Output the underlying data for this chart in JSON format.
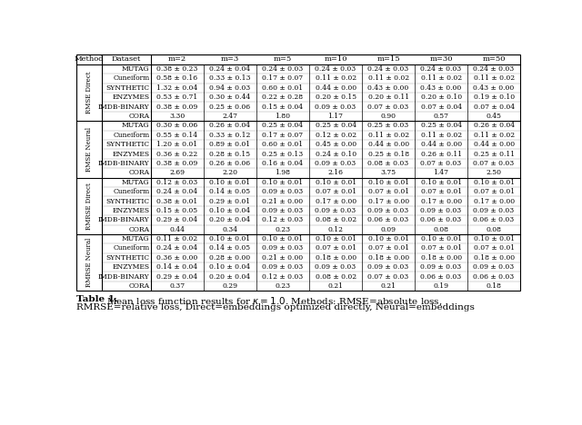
{
  "header": [
    "Method",
    "Dataset",
    "m=2",
    "m=3",
    "m=5",
    "m=10",
    "m=15",
    "m=30",
    "m=50"
  ],
  "sections": [
    {
      "method": "RMSE Direct",
      "rows": [
        [
          "MUTAG",
          "0.38 ± 0.23",
          "0.24 ± 0.04",
          "0.24 ± 0.03",
          "0.24 ± 0.03",
          "0.24 ± 0.03",
          "0.24 ± 0.03",
          "0.24 ± 0.03"
        ],
        [
          "Cuneiform",
          "0.58 ± 0.16",
          "0.33 ± 0.13",
          "0.17 ± 0.07",
          "0.11 ± 0.02",
          "0.11 ± 0.02",
          "0.11 ± 0.02",
          "0.11 ± 0.02"
        ],
        [
          "SYNTHETIC",
          "1.32 ± 0.04",
          "0.94 ± 0.03",
          "0.60 ± 0.01",
          "0.44 ± 0.00",
          "0.43 ± 0.00",
          "0.43 ± 0.00",
          "0.43 ± 0.00"
        ],
        [
          "ENZYMES",
          "0.53 ± 0.71",
          "0.30 ± 0.44",
          "0.22 ± 0.28",
          "0.20 ± 0.15",
          "0.20 ± 0.11",
          "0.20 ± 0.10",
          "0.19 ± 0.10"
        ],
        [
          "IMDB-BINARY",
          "0.38 ± 0.09",
          "0.25 ± 0.06",
          "0.15 ± 0.04",
          "0.09 ± 0.03",
          "0.07 ± 0.03",
          "0.07 ± 0.04",
          "0.07 ± 0.04"
        ],
        [
          "CORA",
          "3.30",
          "2.47",
          "1.80",
          "1.17",
          "0.90",
          "0.57",
          "0.45"
        ]
      ]
    },
    {
      "method": "RMSE Neural",
      "rows": [
        [
          "MUTAG",
          "0.30 ± 0.06",
          "0.26 ± 0.04",
          "0.25 ± 0.04",
          "0.25 ± 0.04",
          "0.25 ± 0.03",
          "0.25 ± 0.04",
          "0.26 ± 0.04"
        ],
        [
          "Cuneiform",
          "0.55 ± 0.14",
          "0.33 ± 0.12",
          "0.17 ± 0.07",
          "0.12 ± 0.02",
          "0.11 ± 0.02",
          "0.11 ± 0.02",
          "0.11 ± 0.02"
        ],
        [
          "SYNTHETIC",
          "1.20 ± 0.01",
          "0.89 ± 0.01",
          "0.60 ± 0.01",
          "0.45 ± 0.00",
          "0.44 ± 0.00",
          "0.44 ± 0.00",
          "0.44 ± 0.00"
        ],
        [
          "ENZYMES",
          "0.36 ± 0.22",
          "0.28 ± 0.15",
          "0.25 ± 0.13",
          "0.24 ± 0.10",
          "0.25 ± 0.18",
          "0.26 ± 0.11",
          "0.25 ± 0.11"
        ],
        [
          "IMDB-BINARY",
          "0.38 ± 0.09",
          "0.26 ± 0.06",
          "0.16 ± 0.04",
          "0.09 ± 0.03",
          "0.08 ± 0.03",
          "0.07 ± 0.03",
          "0.07 ± 0.03"
        ],
        [
          "CORA",
          "2.69",
          "2.20",
          "1.98",
          "2.16",
          "3.75",
          "1.47",
          "2.50"
        ]
      ]
    },
    {
      "method": "RMRSE Direct",
      "rows": [
        [
          "MUTAG",
          "0.12 ± 0.03",
          "0.10 ± 0.01",
          "0.10 ± 0.01",
          "0.10 ± 0.01",
          "0.10 ± 0.01",
          "0.10 ± 0.01",
          "0.10 ± 0.01"
        ],
        [
          "Cuneiform",
          "0.24 ± 0.04",
          "0.14 ± 0.05",
          "0.09 ± 0.03",
          "0.07 ± 0.01",
          "0.07 ± 0.01",
          "0.07 ± 0.01",
          "0.07 ± 0.01"
        ],
        [
          "SYNTHETIC",
          "0.38 ± 0.01",
          "0.29 ± 0.01",
          "0.21 ± 0.00",
          "0.17 ± 0.00",
          "0.17 ± 0.00",
          "0.17 ± 0.00",
          "0.17 ± 0.00"
        ],
        [
          "ENZYMES",
          "0.15 ± 0.05",
          "0.10 ± 0.04",
          "0.09 ± 0.03",
          "0.09 ± 0.03",
          "0.09 ± 0.03",
          "0.09 ± 0.03",
          "0.09 ± 0.03"
        ],
        [
          "IMDB-BINARY",
          "0.29 ± 0.04",
          "0.20 ± 0.04",
          "0.12 ± 0.03",
          "0.08 ± 0.02",
          "0.06 ± 0.03",
          "0.06 ± 0.03",
          "0.06 ± 0.03"
        ],
        [
          "CORA",
          "0.44",
          "0.34",
          "0.23",
          "0.12",
          "0.09",
          "0.08",
          "0.08"
        ]
      ]
    },
    {
      "method": "RMRSE Neural",
      "rows": [
        [
          "MUTAG",
          "0.11 ± 0.02",
          "0.10 ± 0.01",
          "0.10 ± 0.01",
          "0.10 ± 0.01",
          "0.10 ± 0.01",
          "0.10 ± 0.01",
          "0.10 ± 0.01"
        ],
        [
          "Cuneiform",
          "0.24 ± 0.04",
          "0.14 ± 0.05",
          "0.09 ± 0.03",
          "0.07 ± 0.01",
          "0.07 ± 0.01",
          "0.07 ± 0.01",
          "0.07 ± 0.01"
        ],
        [
          "SYNTHETIC",
          "0.36 ± 0.00",
          "0.28 ± 0.00",
          "0.21 ± 0.00",
          "0.18 ± 0.00",
          "0.18 ± 0.00",
          "0.18 ± 0.00",
          "0.18 ± 0.00"
        ],
        [
          "ENZYMES",
          "0.14 ± 0.04",
          "0.10 ± 0.04",
          "0.09 ± 0.03",
          "0.09 ± 0.03",
          "0.09 ± 0.03",
          "0.09 ± 0.03",
          "0.09 ± 0.03"
        ],
        [
          "IMDB-BINARY",
          "0.29 ± 0.04",
          "0.20 ± 0.04",
          "0.12 ± 0.03",
          "0.08 ± 0.02",
          "0.07 ± 0.03",
          "0.06 ± 0.03",
          "0.06 ± 0.03"
        ],
        [
          "CORA",
          "0.37",
          "0.29",
          "0.23",
          "0.21",
          "0.21",
          "0.19",
          "0.18"
        ]
      ]
    }
  ],
  "bg_color": "#ffffff",
  "text_color": "#000000",
  "table_font_size": 5.5,
  "header_font_size": 6.0,
  "caption_font_size": 7.5,
  "method_font_size": 5.0
}
